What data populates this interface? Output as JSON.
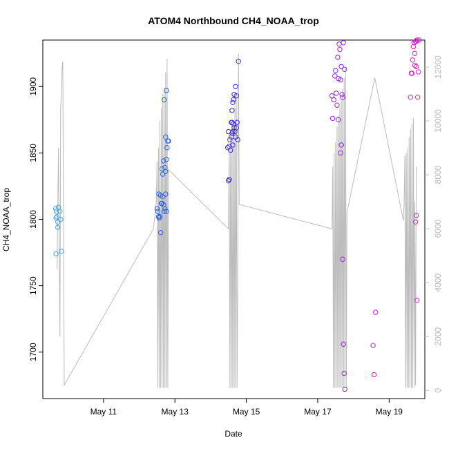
{
  "chart_data": {
    "type": "scatter",
    "title": "ATOM4 Northbound CH4_NOAA_trop",
    "xlabel": "Date",
    "ylabel": "CH4_NOAA_trop",
    "xlim": [
      9.3,
      20.0
    ],
    "ylim": [
      1665,
      1935
    ],
    "y2lim": [
      -300,
      13000
    ],
    "x_ticks": [
      11,
      13,
      15,
      17,
      19
    ],
    "x_tick_labels": [
      "May 11",
      "May 13",
      "May 15",
      "May 17",
      "May 19"
    ],
    "y_ticks": [
      1700,
      1750,
      1800,
      1850,
      1900
    ],
    "y2_ticks": [
      0,
      2000,
      4000,
      6000,
      8000,
      10000,
      12000
    ],
    "colors": {
      "altitude_line": "#bbbbbb",
      "axis": "#000000",
      "right_axis": "#bbbbbb",
      "day1": "#3ea8f0",
      "day2": "#2b63e6",
      "day3": "#3d25e6",
      "day4": "#9a1fe0",
      "day5": "#c21ad6",
      "day6": "#e61ad2"
    },
    "series": [
      {
        "color": "#3ea8f0",
        "points": [
          [
            9.66,
            1808
          ],
          [
            9.68,
            1806
          ],
          [
            9.67,
            1801
          ],
          [
            9.7,
            1802
          ],
          [
            9.72,
            1798
          ],
          [
            9.74,
            1809
          ],
          [
            9.78,
            1806
          ],
          [
            9.8,
            1800
          ],
          [
            9.72,
            1794
          ],
          [
            9.67,
            1774
          ],
          [
            9.82,
            1776
          ]
        ]
      },
      {
        "color": "#2b63e6",
        "points": [
          [
            12.5,
            1808
          ],
          [
            12.52,
            1806
          ],
          [
            12.54,
            1802
          ],
          [
            12.56,
            1801
          ],
          [
            12.58,
            1802
          ],
          [
            12.55,
            1819
          ],
          [
            12.6,
            1818
          ],
          [
            12.62,
            1812
          ],
          [
            12.64,
            1812
          ],
          [
            12.66,
            1817
          ],
          [
            12.68,
            1811
          ],
          [
            12.7,
            1806
          ],
          [
            12.72,
            1808
          ],
          [
            12.74,
            1819
          ],
          [
            12.76,
            1806
          ],
          [
            12.6,
            1790
          ],
          [
            12.64,
            1838
          ],
          [
            12.66,
            1834
          ],
          [
            12.68,
            1844
          ],
          [
            12.72,
            1839
          ],
          [
            12.74,
            1836
          ],
          [
            12.76,
            1845
          ],
          [
            12.78,
            1854
          ],
          [
            12.8,
            1859
          ],
          [
            12.82,
            1859
          ],
          [
            12.74,
            1862
          ],
          [
            12.7,
            1890
          ],
          [
            12.76,
            1897
          ]
        ]
      },
      {
        "color": "#3d25e6",
        "points": [
          [
            14.5,
            1829
          ],
          [
            14.52,
            1830
          ],
          [
            14.48,
            1854
          ],
          [
            14.5,
            1866
          ],
          [
            14.52,
            1855
          ],
          [
            14.54,
            1860
          ],
          [
            14.56,
            1852
          ],
          [
            14.58,
            1862
          ],
          [
            14.6,
            1865
          ],
          [
            14.62,
            1866
          ],
          [
            14.58,
            1873
          ],
          [
            14.6,
            1873
          ],
          [
            14.62,
            1856
          ],
          [
            14.64,
            1872
          ],
          [
            14.66,
            1869
          ],
          [
            14.68,
            1866
          ],
          [
            14.7,
            1862
          ],
          [
            14.72,
            1869
          ],
          [
            14.74,
            1873
          ],
          [
            14.76,
            1860
          ],
          [
            14.6,
            1882
          ],
          [
            14.62,
            1888
          ],
          [
            14.64,
            1890
          ],
          [
            14.66,
            1894
          ],
          [
            14.7,
            1900
          ],
          [
            14.72,
            1893
          ],
          [
            14.78,
            1919
          ]
        ]
      },
      {
        "color": "#9a1fe0",
        "points": [
          [
            17.4,
            1893
          ],
          [
            17.42,
            1876
          ],
          [
            17.45,
            1890
          ],
          [
            17.48,
            1908
          ],
          [
            17.5,
            1912
          ],
          [
            17.52,
            1895
          ],
          [
            17.54,
            1886
          ],
          [
            17.56,
            1922
          ],
          [
            17.58,
            1906
          ],
          [
            17.6,
            1932
          ],
          [
            17.62,
            1928
          ],
          [
            17.64,
            1905
          ],
          [
            17.66,
            1915
          ],
          [
            17.58,
            1875
          ],
          [
            17.68,
            1894
          ],
          [
            17.7,
            1892
          ],
          [
            17.72,
            1933
          ],
          [
            17.75,
            1913
          ],
          [
            17.66,
            1856
          ],
          [
            17.64,
            1850
          ],
          [
            17.7,
            1770
          ],
          [
            17.72,
            1706
          ],
          [
            17.74,
            1684
          ],
          [
            17.76,
            1672
          ]
        ]
      },
      {
        "color": "#c21ad6",
        "points": [
          [
            18.55,
            1705
          ],
          [
            18.58,
            1683
          ],
          [
            18.62,
            1730
          ]
        ]
      },
      {
        "color": "#e61ad2",
        "points": [
          [
            19.6,
            1892
          ],
          [
            19.62,
            1910
          ],
          [
            19.64,
            1910
          ],
          [
            19.66,
            1920
          ],
          [
            19.68,
            1930
          ],
          [
            19.7,
            1933
          ],
          [
            19.72,
            1925
          ],
          [
            19.74,
            1934
          ],
          [
            19.76,
            1934
          ],
          [
            19.78,
            1935
          ],
          [
            19.72,
            1916
          ],
          [
            19.76,
            1915
          ],
          [
            19.8,
            1892
          ],
          [
            19.82,
            1911
          ],
          [
            19.84,
            1935
          ],
          [
            19.74,
            1798
          ],
          [
            19.76,
            1803
          ],
          [
            19.78,
            1739
          ],
          [
            19.7,
            1933
          ]
        ]
      }
    ],
    "altitude": {
      "axis": "right",
      "points": [
        [
          9.7,
          4500
        ],
        [
          9.72,
          7000
        ],
        [
          9.74,
          9000
        ],
        [
          9.76,
          5000
        ],
        [
          9.78,
          2000
        ],
        [
          9.8,
          10500
        ],
        [
          9.82,
          11000
        ],
        [
          9.84,
          12000
        ],
        [
          9.86,
          12200
        ],
        [
          9.9,
          200
        ],
        [
          12.4,
          6000
        ],
        [
          12.48,
          7000
        ],
        [
          12.5,
          8500
        ],
        [
          12.52,
          100
        ],
        [
          12.54,
          9000
        ],
        [
          12.56,
          100
        ],
        [
          12.58,
          10000
        ],
        [
          12.6,
          100
        ],
        [
          12.62,
          10500
        ],
        [
          12.64,
          100
        ],
        [
          12.66,
          11000
        ],
        [
          12.68,
          100
        ],
        [
          12.7,
          11200
        ],
        [
          12.72,
          100
        ],
        [
          12.74,
          11800
        ],
        [
          12.76,
          100
        ],
        [
          12.78,
          12300
        ],
        [
          12.8,
          100
        ],
        [
          12.82,
          8200
        ],
        [
          14.5,
          6000
        ],
        [
          14.52,
          9000
        ],
        [
          14.54,
          100
        ],
        [
          14.56,
          9500
        ],
        [
          14.58,
          100
        ],
        [
          14.6,
          9800
        ],
        [
          14.62,
          100
        ],
        [
          14.64,
          10000
        ],
        [
          14.66,
          100
        ],
        [
          14.68,
          10500
        ],
        [
          14.7,
          100
        ],
        [
          14.72,
          10800
        ],
        [
          14.74,
          100
        ],
        [
          14.76,
          4000
        ],
        [
          14.78,
          12500
        ],
        [
          14.8,
          6900
        ],
        [
          17.4,
          6000
        ],
        [
          17.42,
          8300
        ],
        [
          17.44,
          100
        ],
        [
          17.46,
          8800
        ],
        [
          17.48,
          100
        ],
        [
          17.5,
          9200
        ],
        [
          17.52,
          100
        ],
        [
          17.54,
          9800
        ],
        [
          17.56,
          100
        ],
        [
          17.58,
          10200
        ],
        [
          17.6,
          100
        ],
        [
          17.62,
          10500
        ],
        [
          17.64,
          100
        ],
        [
          17.66,
          10800
        ],
        [
          17.68,
          100
        ],
        [
          17.7,
          11200
        ],
        [
          17.72,
          100
        ],
        [
          17.74,
          11600
        ],
        [
          17.76,
          100
        ],
        [
          17.78,
          12000
        ],
        [
          17.8,
          100
        ],
        [
          17.82,
          6600
        ],
        [
          18.6,
          11600
        ],
        [
          19.4,
          6300
        ],
        [
          19.42,
          7000
        ],
        [
          19.44,
          8700
        ],
        [
          19.46,
          100
        ],
        [
          19.48,
          8800
        ],
        [
          19.5,
          100
        ],
        [
          19.52,
          9000
        ],
        [
          19.54,
          100
        ],
        [
          19.56,
          9400
        ],
        [
          19.58,
          100
        ],
        [
          19.6,
          9700
        ],
        [
          19.62,
          100
        ],
        [
          19.64,
          9900
        ],
        [
          19.66,
          100
        ],
        [
          19.68,
          10100
        ],
        [
          19.7,
          100
        ],
        [
          19.72,
          7000
        ],
        [
          19.74,
          200
        ],
        [
          19.76,
          8300
        ]
      ]
    }
  }
}
